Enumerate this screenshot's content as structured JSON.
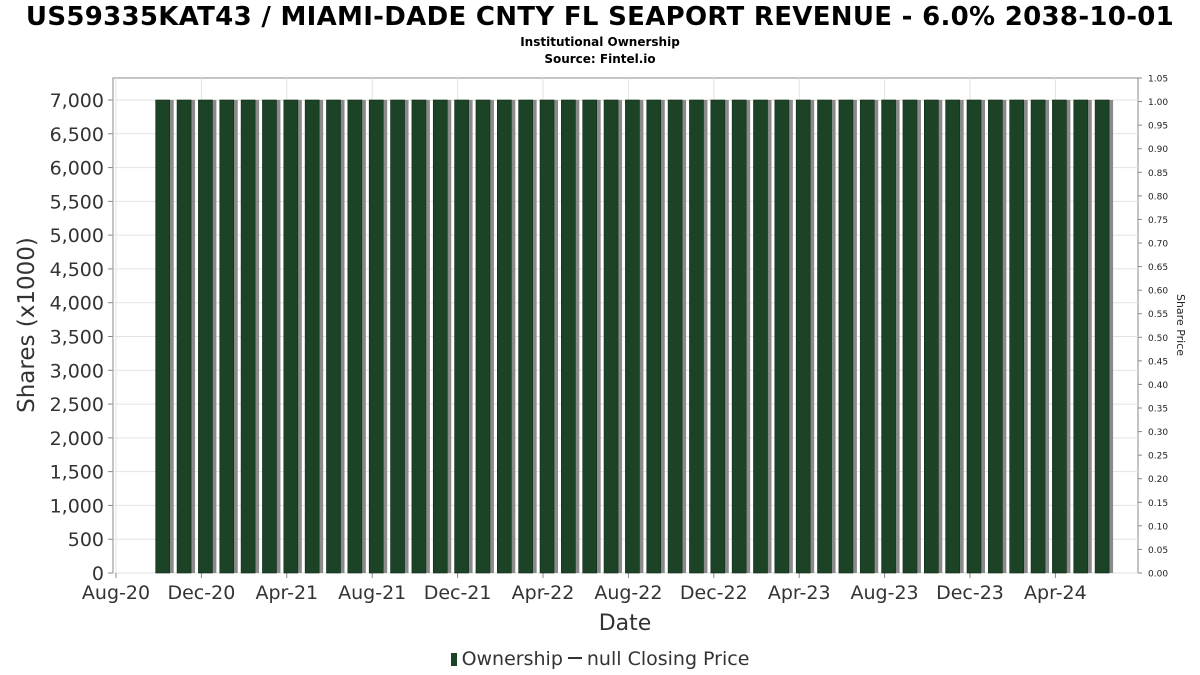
{
  "title": "US59335KAT43 / MIAMI-DADE CNTY FL SEAPORT REVENUE - 6.0% 2038-10-01",
  "subtitle": "Institutional Ownership",
  "source": "Source: Fintel.io",
  "legend": {
    "ownership_label": "Ownership",
    "price_label": "null Closing Price"
  },
  "colors": {
    "bar": "#1d4327",
    "bar_shadow": "#8a8a8a",
    "grid": "#e2e2e2",
    "axis": "#888888"
  },
  "chart_data": {
    "type": "bar",
    "xlabel": "Date",
    "ylabel": "Shares (x1000)",
    "y2label": "Share Price",
    "ylim": [
      0,
      7000
    ],
    "y_ticks": [
      "0",
      "500",
      "1,000",
      "1,500",
      "2,000",
      "2,500",
      "3,000",
      "3,500",
      "4,000",
      "4,500",
      "5,000",
      "5,500",
      "6,000",
      "6,500",
      "7,000"
    ],
    "y2lim": [
      0,
      1.05
    ],
    "y2_ticks": [
      "0.00",
      "0.05",
      "0.10",
      "0.15",
      "0.20",
      "0.25",
      "0.30",
      "0.35",
      "0.40",
      "0.45",
      "0.50",
      "0.55",
      "0.60",
      "0.65",
      "0.70",
      "0.75",
      "0.80",
      "0.85",
      "0.90",
      "0.95",
      "1.00",
      "1.05"
    ],
    "x_ticks": [
      "Aug-20",
      "Dec-20",
      "Apr-21",
      "Aug-21",
      "Dec-21",
      "Apr-22",
      "Aug-22",
      "Dec-22",
      "Apr-23",
      "Aug-23",
      "Dec-23",
      "Apr-24"
    ],
    "x_range": [
      "2020-08",
      "2024-07"
    ],
    "grid": true,
    "legend_position": "bottom",
    "series": [
      {
        "name": "Ownership",
        "x": [
          "2020-10",
          "2020-11",
          "2020-12",
          "2021-01",
          "2021-02",
          "2021-03",
          "2021-04",
          "2021-05",
          "2021-06",
          "2021-07",
          "2021-08",
          "2021-09",
          "2021-10",
          "2021-11",
          "2021-12",
          "2022-01",
          "2022-02",
          "2022-03",
          "2022-04",
          "2022-05",
          "2022-06",
          "2022-07",
          "2022-08",
          "2022-09",
          "2022-10",
          "2022-11",
          "2022-12",
          "2023-01",
          "2023-02",
          "2023-03",
          "2023-04",
          "2023-05",
          "2023-06",
          "2023-07",
          "2023-08",
          "2023-09",
          "2023-10",
          "2023-11",
          "2023-12",
          "2024-01",
          "2024-02",
          "2024-03",
          "2024-04",
          "2024-05",
          "2024-06"
        ],
        "values": [
          7000,
          7000,
          7000,
          7000,
          7000,
          7000,
          7000,
          7000,
          7000,
          7000,
          7000,
          7000,
          7000,
          7000,
          7000,
          7000,
          7000,
          7000,
          7000,
          7000,
          7000,
          7000,
          7000,
          7000,
          7000,
          7000,
          7000,
          7000,
          7000,
          7000,
          7000,
          7000,
          7000,
          7000,
          7000,
          7000,
          7000,
          7000,
          7000,
          7000,
          7000,
          7000,
          7000,
          7000,
          7000
        ]
      }
    ]
  }
}
